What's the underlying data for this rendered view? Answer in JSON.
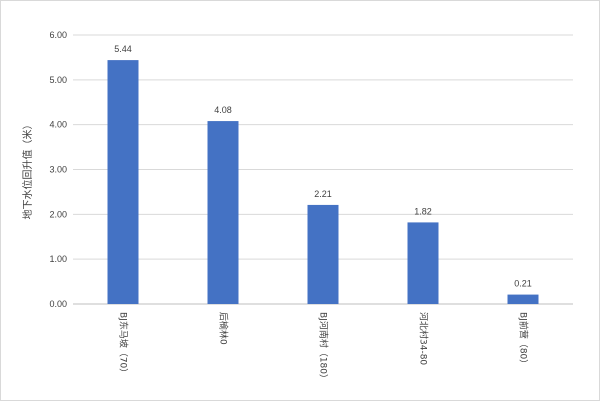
{
  "chart_data": {
    "type": "bar",
    "title": "",
    "xlabel": "",
    "ylabel": "地下水位回升值（米）",
    "ylim": [
      0,
      6
    ],
    "yticks": [
      "0.00",
      "1.00",
      "2.00",
      "3.00",
      "4.00",
      "5.00",
      "6.00"
    ],
    "categories": [
      "BJ东马坡（70）",
      "后榆林0",
      "BJ河南村（180）",
      "河北村34-80",
      "BJ前营（80）"
    ],
    "values": [
      5.44,
      4.08,
      2.21,
      1.82,
      0.21
    ],
    "value_labels": [
      "5.44",
      "4.08",
      "2.21",
      "1.82",
      "0.21"
    ],
    "grid": true,
    "legend": "none",
    "bar_color": "#4472c4",
    "grid_color": "#d9d9d9"
  }
}
